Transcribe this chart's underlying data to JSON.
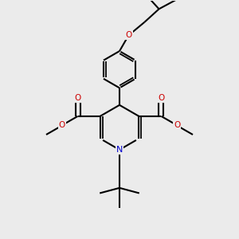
{
  "bg_color": "#ebebeb",
  "bond_color": "#000000",
  "N_color": "#0000cc",
  "O_color": "#cc0000",
  "line_width": 1.5,
  "figsize": [
    3.0,
    3.0
  ],
  "dpi": 100,
  "xlim": [
    -3.5,
    3.5
  ],
  "ylim": [
    -4.2,
    4.8
  ]
}
